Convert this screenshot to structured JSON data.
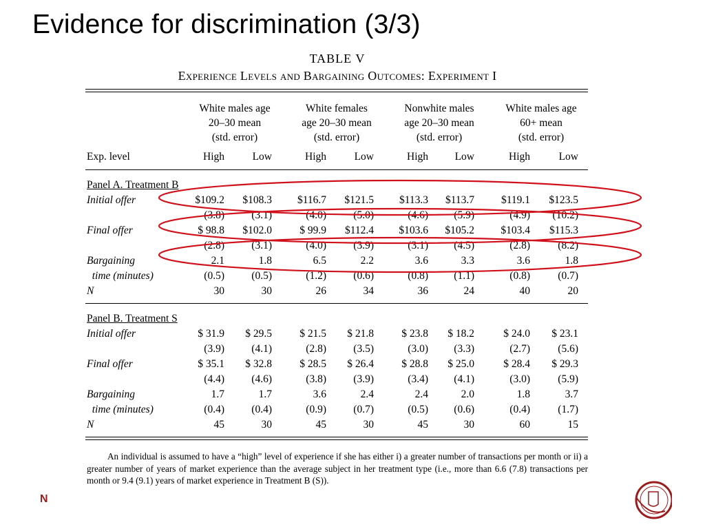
{
  "slide": {
    "title": "Evidence for discrimination (3/3)",
    "footer_letter": "N"
  },
  "table": {
    "title": "TABLE V",
    "subtitle": "Experience Levels and Bargaining Outcomes: Experiment I",
    "groups": [
      [
        "White males age",
        "20–30 mean",
        "(std. error)"
      ],
      [
        "White females",
        "age 20–30 mean",
        "(std. error)"
      ],
      [
        "Nonwhite males",
        "age 20–30 mean",
        "(std. error)"
      ],
      [
        "White males age",
        "60+ mean",
        "(std. error)"
      ]
    ],
    "exp_label": "Exp. level",
    "levels": [
      "High",
      "Low",
      "High",
      "Low",
      "High",
      "Low",
      "High",
      "Low"
    ],
    "panelA": {
      "heading": "Panel A. Treatment B",
      "rows": [
        {
          "label": "Initial offer",
          "italic": true,
          "vals": [
            "$109.2",
            "$108.3",
            "$116.7",
            "$121.5",
            "$113.3",
            "$113.7",
            "$119.1",
            "$123.5"
          ]
        },
        {
          "label": "",
          "italic": false,
          "vals": [
            "(3.8)",
            "(3.1)",
            "(4.0)",
            "(5.0)",
            "(4.6)",
            "(5.9)",
            "(4.9)",
            "(10.2)"
          ]
        },
        {
          "label": "Final offer",
          "italic": true,
          "vals": [
            "$ 98.8",
            "$102.0",
            "$ 99.9",
            "$112.4",
            "$103.6",
            "$105.2",
            "$103.4",
            "$115.3"
          ]
        },
        {
          "label": "",
          "italic": false,
          "vals": [
            "(2.8)",
            "(3.1)",
            "(4.0)",
            "(3.9)",
            "(3.1)",
            "(4.5)",
            "(2.8)",
            "(8.2)"
          ]
        },
        {
          "label": "Bargaining",
          "italic": true,
          "vals": [
            "2.1",
            "1.8",
            "6.5",
            "2.2",
            "3.6",
            "3.3",
            "3.6",
            "1.8"
          ]
        },
        {
          "label": "  time (minutes)",
          "italic": true,
          "vals": [
            "(0.5)",
            "(0.5)",
            "(1.2)",
            "(0.6)",
            "(0.8)",
            "(1.1)",
            "(0.8)",
            "(0.7)"
          ]
        },
        {
          "label": "N",
          "italic": true,
          "vals": [
            "30",
            "30",
            "26",
            "34",
            "36",
            "24",
            "40",
            "20"
          ]
        }
      ]
    },
    "panelB": {
      "heading": "Panel B. Treatment S",
      "rows": [
        {
          "label": "Initial offer",
          "italic": true,
          "vals": [
            "$ 31.9",
            "$ 29.5",
            "$ 21.5",
            "$ 21.8",
            "$ 23.8",
            "$ 18.2",
            "$ 24.0",
            "$ 23.1"
          ]
        },
        {
          "label": "",
          "italic": false,
          "vals": [
            "(3.9)",
            "(4.1)",
            "(2.8)",
            "(3.5)",
            "(3.0)",
            "(3.3)",
            "(2.7)",
            "(5.6)"
          ]
        },
        {
          "label": "Final offer",
          "italic": true,
          "vals": [
            "$ 35.1",
            "$ 32.8",
            "$ 28.5",
            "$ 26.4",
            "$ 28.8",
            "$ 25.0",
            "$ 28.4",
            "$ 29.3"
          ]
        },
        {
          "label": "",
          "italic": false,
          "vals": [
            "(4.4)",
            "(4.6)",
            "(3.8)",
            "(3.9)",
            "(3.4)",
            "(4.1)",
            "(3.0)",
            "(5.9)"
          ]
        },
        {
          "label": "Bargaining",
          "italic": true,
          "vals": [
            "1.7",
            "1.7",
            "3.6",
            "2.4",
            "2.4",
            "2.0",
            "1.8",
            "3.7"
          ]
        },
        {
          "label": "  time (minutes)",
          "italic": true,
          "vals": [
            "(0.4)",
            "(0.4)",
            "(0.9)",
            "(0.7)",
            "(0.5)",
            "(0.6)",
            "(0.4)",
            "(1.7)"
          ]
        },
        {
          "label": "N",
          "italic": true,
          "vals": [
            "45",
            "30",
            "45",
            "30",
            "45",
            "30",
            "60",
            "15"
          ]
        }
      ]
    },
    "note": "An individual is assumed to have a “high” level of experience if she has either i) a greater number of transactions per month or ii) a greater number of years of market experience than the average subject in her treatment type (i.e., more than 6.6 (7.8) transactions per month or 9.4 (9.1) years of market experience in Treatment B (S))."
  },
  "highlight_color": "#d0101a",
  "brand_color": "#9b1c1c"
}
